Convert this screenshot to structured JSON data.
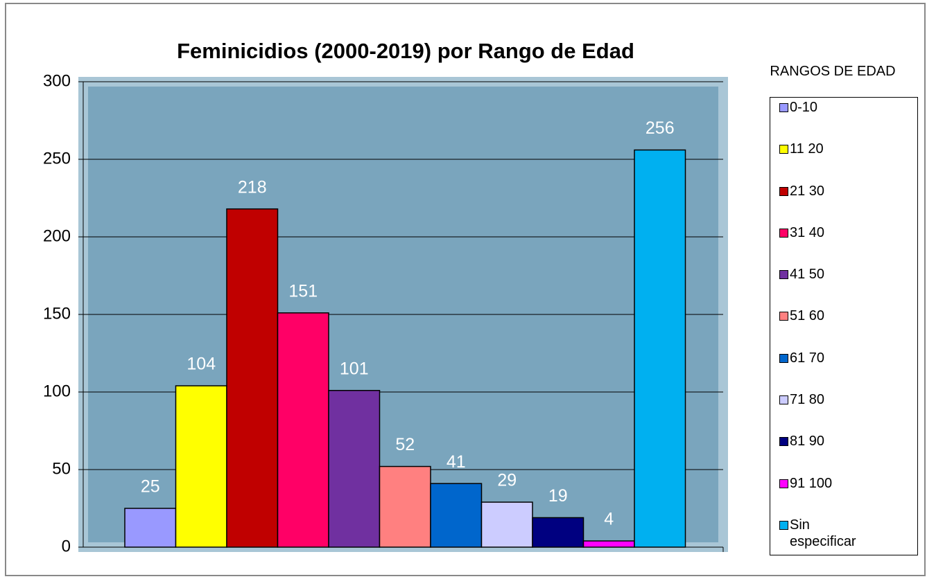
{
  "chart_data": {
    "type": "bar",
    "title": "Feminicidios (2000-2019) por Rango de Edad",
    "legend_title": "RANGOS DE EDAD",
    "categories": [
      "0-10",
      "11 20",
      "21 30",
      "31 40",
      "41 50",
      "51 60",
      "61 70",
      "71 80",
      "81 90",
      "91 100",
      "Sin especificar"
    ],
    "values": [
      25,
      104,
      218,
      151,
      101,
      52,
      41,
      29,
      19,
      4,
      256
    ],
    "colors": [
      "#9999ff",
      "#ffff00",
      "#c00000",
      "#ff0066",
      "#7030a0",
      "#ff8080",
      "#0066cc",
      "#ccccff",
      "#000080",
      "#ff00ff",
      "#00b0f0"
    ],
    "ylim": [
      0,
      300
    ],
    "yticks": [
      0,
      50,
      100,
      150,
      200,
      250,
      300
    ],
    "grid": true,
    "legend": "right"
  }
}
